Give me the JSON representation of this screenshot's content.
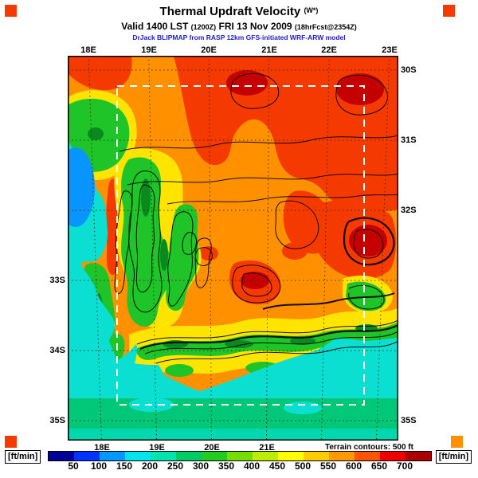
{
  "header": {
    "title": "Thermal Updraft Velocity",
    "title_unit": "(W*)",
    "valid_prefix": "Valid 1400 LST",
    "valid_zulu": "(1200Z)",
    "valid_date": "FRI 13 Nov 2009",
    "valid_fcst": "(18hrFcst@2354Z)",
    "model_line": "DrJack BLIPMAP from RASP 12km GFS-initiated WRF-ARW model"
  },
  "map": {
    "terrain_note": "Terrain contours: 500 ft",
    "axes": {
      "top": [
        "18E",
        "19E",
        "20E",
        "21E",
        "22E",
        "23E"
      ],
      "bottom": [
        "18E",
        "19E",
        "20E",
        "21E"
      ],
      "left": [
        "33S",
        "34S",
        "35S"
      ],
      "right": [
        "30S",
        "31S",
        "32S",
        "35S"
      ]
    },
    "domain_box_color": "#ffffff",
    "grid_color": "#3a2000"
  },
  "colorbar": {
    "unit_left": "[ft/min]",
    "unit_right": "[ft/min]",
    "ticks": [
      "50",
      "100",
      "150",
      "200",
      "250",
      "300",
      "350",
      "400",
      "450",
      "500",
      "550",
      "600",
      "650",
      "700"
    ],
    "colors": [
      "#000099",
      "#0033ff",
      "#0099ff",
      "#00e5ee",
      "#00e5b0",
      "#00cc66",
      "#22cc22",
      "#77dd00",
      "#bbee00",
      "#ffff00",
      "#ffcc00",
      "#ff9900",
      "#ff5500",
      "#ee0000",
      "#aa0000"
    ]
  },
  "corner_markers": [
    "#f53a00",
    "#f53a00",
    "#f53a00",
    "#ff9000"
  ]
}
